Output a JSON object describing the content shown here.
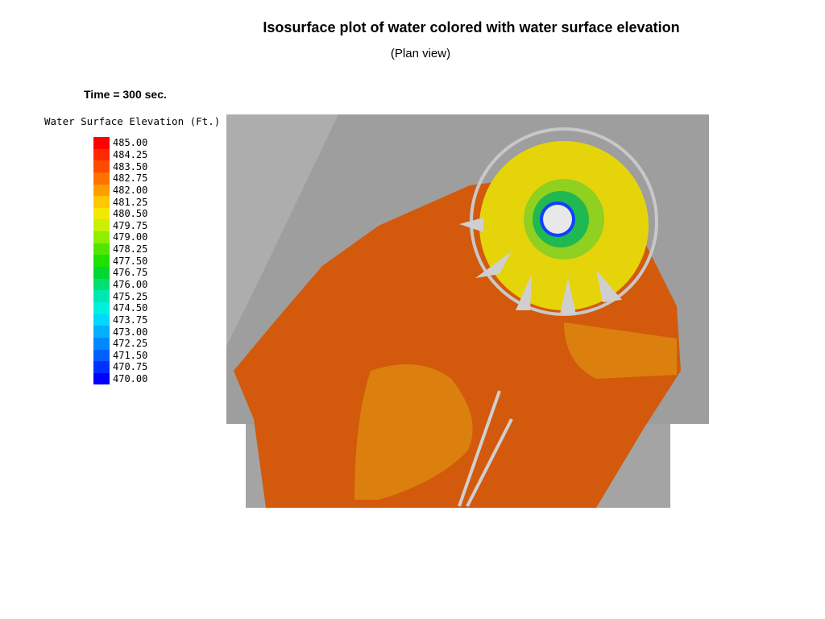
{
  "title": "Isosurface plot of water colored with water surface elevation",
  "subtitle": "(Plan view)",
  "time_label": "Time = 300 sec.",
  "legend": {
    "title": "Water Surface Elevation (Ft.)",
    "items": [
      {
        "label": "485.00",
        "color": "#ff0000"
      },
      {
        "label": "484.25",
        "color": "#ff2a00"
      },
      {
        "label": "483.50",
        "color": "#ff4a00"
      },
      {
        "label": "482.75",
        "color": "#ff7200"
      },
      {
        "label": "482.00",
        "color": "#ff9c00"
      },
      {
        "label": "481.25",
        "color": "#ffc800"
      },
      {
        "label": "480.50",
        "color": "#f2e800"
      },
      {
        "label": "479.75",
        "color": "#c8f000"
      },
      {
        "label": "479.00",
        "color": "#90ee00"
      },
      {
        "label": "478.25",
        "color": "#50e600"
      },
      {
        "label": "477.50",
        "color": "#20e000"
      },
      {
        "label": "476.75",
        "color": "#00d830"
      },
      {
        "label": "476.00",
        "color": "#00e070"
      },
      {
        "label": "475.25",
        "color": "#00e8b0"
      },
      {
        "label": "474.50",
        "color": "#00f0e0"
      },
      {
        "label": "473.75",
        "color": "#00d8ff"
      },
      {
        "label": "473.00",
        "color": "#00b0ff"
      },
      {
        "label": "472.25",
        "color": "#0088ff"
      },
      {
        "label": "471.50",
        "color": "#0060ff"
      },
      {
        "label": "470.75",
        "color": "#0030ff"
      },
      {
        "label": "470.00",
        "color": "#0000ff"
      }
    ]
  }
}
